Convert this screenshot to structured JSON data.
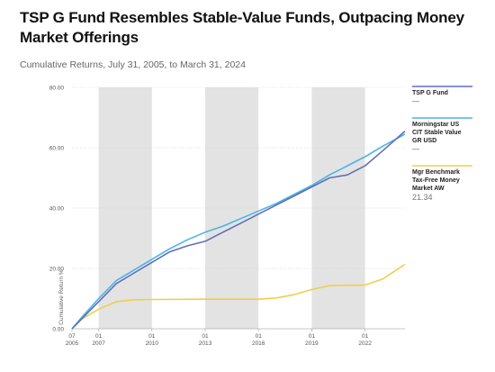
{
  "header": {
    "title": "TSP G Fund Resembles Stable-Value Funds, Outpacing Money Market Offerings",
    "subtitle": "Cumulative Returns, July 31, 2005, to March 31, 2024"
  },
  "chart_data": {
    "type": "line",
    "title": "TSP G Fund Resembles Stable-Value Funds, Outpacing Money Market Offerings",
    "subtitle": "Cumulative Returns, July 31, 2005, to March 31, 2024",
    "ylabel": "Cumulative Return %",
    "xlabel": "",
    "ylim": [
      0,
      80
    ],
    "xlim": [
      2005.5,
      2024.25
    ],
    "y_ticks": [
      "80.00",
      "60.00",
      "40.00",
      "20.00",
      "0.00"
    ],
    "y_tick_values": [
      80,
      60,
      40,
      20,
      0
    ],
    "x_ticks": [
      {
        "month": "07",
        "year": "2005",
        "value": 2005.5
      },
      {
        "month": "01",
        "year": "2007",
        "value": 2007
      },
      {
        "month": "01",
        "year": "2010",
        "value": 2010
      },
      {
        "month": "01",
        "year": "2013",
        "value": 2013
      },
      {
        "month": "01",
        "year": "2016",
        "value": 2016
      },
      {
        "month": "01",
        "year": "2019",
        "value": 2019
      },
      {
        "month": "01",
        "year": "2022",
        "value": 2022
      }
    ],
    "shaded_bands": [
      [
        2007,
        2010
      ],
      [
        2013,
        2016
      ],
      [
        2019,
        2022
      ]
    ],
    "grid": true,
    "legend_placement": "right",
    "series": [
      {
        "name": "TSP G Fund",
        "color": "#5e6fb8",
        "legend_value": "—",
        "x": [
          2005.5,
          2006,
          2007,
          2008,
          2009,
          2010,
          2011,
          2012,
          2013,
          2014,
          2015,
          2016,
          2017,
          2018,
          2019,
          2020,
          2021,
          2022,
          2023,
          2024.25
        ],
        "y": [
          0,
          3,
          9,
          15,
          18.5,
          22,
          25.5,
          27.5,
          29,
          32,
          35,
          38,
          41,
          44,
          47,
          50,
          51,
          54,
          59,
          65.5
        ]
      },
      {
        "name": "Morningstar US CIT Stable Value GR USD",
        "color": "#4bb3e6",
        "legend_value": "—",
        "x": [
          2005.5,
          2006,
          2007,
          2008,
          2009,
          2010,
          2011,
          2012,
          2013,
          2014,
          2015,
          2016,
          2017,
          2018,
          2019,
          2020,
          2021,
          2022,
          2023,
          2024.25
        ],
        "y": [
          0,
          3.5,
          10,
          16,
          19.5,
          23,
          26.5,
          29.5,
          32,
          34,
          36.5,
          39,
          41.5,
          44.5,
          47.5,
          51,
          54,
          57,
          60.5,
          64.5
        ]
      },
      {
        "name": "Mgr Benchmark Tax-Free Money Market AW",
        "color": "#f2cd4a",
        "legend_value": "21.34",
        "x": [
          2005.5,
          2006,
          2007,
          2008,
          2009,
          2010,
          2013,
          2016,
          2017,
          2018,
          2019,
          2020,
          2021,
          2022,
          2023,
          2024.25
        ],
        "y": [
          0,
          3,
          6.5,
          9,
          9.6,
          9.7,
          9.8,
          9.8,
          10.2,
          11.3,
          13,
          14.3,
          14.4,
          14.5,
          16.5,
          21.34
        ]
      }
    ]
  }
}
